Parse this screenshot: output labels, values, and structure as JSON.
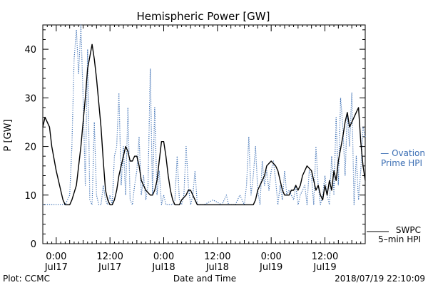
{
  "footer": {
    "plot_credit": "Plot: CCMC",
    "timestamp": "2018/07/19 22:10:09"
  },
  "legend": {
    "ovation_line1": "— Ovation",
    "ovation_line2": "Prime HPI",
    "swpc_line1": "SWPC",
    "swpc_line2": "5–min HPI"
  },
  "colors": {
    "ovation": "#3c6fb4",
    "swpc": "#000000",
    "axis": "#000000"
  },
  "chart_data": {
    "type": "line",
    "title": "Hemispheric Power [GW]",
    "xlabel": "Date and Time",
    "ylabel": "P [GW]",
    "ylim": [
      0,
      45
    ],
    "yticks": [
      0,
      10,
      20,
      30,
      40
    ],
    "xlim": [
      -3,
      69
    ],
    "x_unit": "hours",
    "xticks": [
      {
        "x": 0,
        "line1": "0:00",
        "line2": "Jul17"
      },
      {
        "x": 12,
        "line1": "12:00",
        "line2": "Jul17"
      },
      {
        "x": 24,
        "line1": "0:00",
        "line2": "Jul18"
      },
      {
        "x": 36,
        "line1": "12:00",
        "line2": "Jul18"
      },
      {
        "x": 48,
        "line1": "0:00",
        "line2": "Jul19"
      },
      {
        "x": 60,
        "line1": "12:00",
        "line2": "Jul19"
      }
    ],
    "grid": false,
    "series": [
      {
        "name": "SWPC 5-min HPI",
        "style": "solid",
        "points": [
          [
            -3,
            24
          ],
          [
            -2.5,
            26
          ],
          [
            -1.5,
            24
          ],
          [
            -1,
            20
          ],
          [
            0,
            15
          ],
          [
            1,
            11
          ],
          [
            1.5,
            9
          ],
          [
            2,
            8
          ],
          [
            3,
            8
          ],
          [
            3.5,
            9
          ],
          [
            4.5,
            12
          ],
          [
            5.5,
            20
          ],
          [
            6.5,
            30
          ],
          [
            7,
            36
          ],
          [
            8,
            41
          ],
          [
            8.5,
            38
          ],
          [
            9,
            34
          ],
          [
            10,
            24
          ],
          [
            10.5,
            17
          ],
          [
            11,
            11
          ],
          [
            11.5,
            9
          ],
          [
            12,
            8
          ],
          [
            12.5,
            8
          ],
          [
            13,
            9
          ],
          [
            13.5,
            11
          ],
          [
            14,
            14
          ],
          [
            15,
            18
          ],
          [
            15.5,
            20
          ],
          [
            16,
            19
          ],
          [
            16.5,
            17
          ],
          [
            17,
            17
          ],
          [
            17.5,
            18
          ],
          [
            18,
            18
          ],
          [
            18.5,
            16
          ],
          [
            19,
            13
          ],
          [
            20,
            11
          ],
          [
            21,
            10
          ],
          [
            21.5,
            10
          ],
          [
            22,
            11
          ],
          [
            22.5,
            13
          ],
          [
            23,
            17
          ],
          [
            23.5,
            21
          ],
          [
            24,
            21
          ],
          [
            24.5,
            18
          ],
          [
            25,
            14
          ],
          [
            25.5,
            11
          ],
          [
            26,
            9
          ],
          [
            26.5,
            8
          ],
          [
            27,
            8
          ],
          [
            27.5,
            8
          ],
          [
            28,
            9
          ],
          [
            29,
            10
          ],
          [
            29.5,
            11
          ],
          [
            30,
            11
          ],
          [
            30.5,
            10
          ],
          [
            31,
            9
          ],
          [
            31.5,
            8
          ],
          [
            44,
            8
          ],
          [
            44.5,
            9
          ],
          [
            45,
            11
          ],
          [
            46,
            13
          ],
          [
            46.5,
            14
          ],
          [
            47,
            16
          ],
          [
            48,
            17
          ],
          [
            49,
            16
          ],
          [
            49.5,
            15
          ],
          [
            50,
            13
          ],
          [
            50.5,
            11
          ],
          [
            51,
            10
          ],
          [
            52,
            10
          ],
          [
            52.5,
            11
          ],
          [
            53,
            11
          ],
          [
            53.5,
            12
          ],
          [
            54,
            11
          ],
          [
            54.5,
            12
          ],
          [
            55,
            14
          ],
          [
            56,
            16
          ],
          [
            57,
            15
          ],
          [
            57.5,
            13
          ],
          [
            58,
            11
          ],
          [
            58.5,
            12
          ],
          [
            59,
            10
          ],
          [
            59.5,
            9
          ],
          [
            60,
            12
          ],
          [
            60.5,
            10
          ],
          [
            61,
            13
          ],
          [
            61.5,
            11
          ],
          [
            62,
            15
          ],
          [
            62.5,
            13
          ],
          [
            63,
            17
          ],
          [
            64,
            22
          ],
          [
            64.5,
            25
          ],
          [
            65,
            27
          ],
          [
            65.5,
            24
          ],
          [
            66,
            25
          ],
          [
            67,
            27
          ],
          [
            67.5,
            28
          ],
          [
            68,
            21
          ],
          [
            68.5,
            16
          ],
          [
            69,
            13
          ]
        ]
      },
      {
        "name": "Ovation Prime HPI",
        "style": "dotted",
        "points": [
          [
            -3,
            8
          ],
          [
            1,
            8
          ],
          [
            2,
            8
          ],
          [
            3,
            10
          ],
          [
            3.5,
            20
          ],
          [
            4,
            38
          ],
          [
            4.5,
            44
          ],
          [
            5,
            35
          ],
          [
            5.5,
            45
          ],
          [
            6,
            30
          ],
          [
            6.5,
            12
          ],
          [
            7,
            40
          ],
          [
            7.5,
            9
          ],
          [
            8,
            8
          ],
          [
            8.5,
            25
          ],
          [
            9,
            10
          ],
          [
            9.5,
            8
          ],
          [
            10,
            8
          ],
          [
            10.5,
            12
          ],
          [
            11,
            9
          ],
          [
            11.5,
            8
          ],
          [
            12,
            10
          ],
          [
            12.5,
            8
          ],
          [
            13,
            18
          ],
          [
            13.5,
            20
          ],
          [
            14,
            31
          ],
          [
            14.5,
            12
          ],
          [
            15,
            20
          ],
          [
            15.5,
            10
          ],
          [
            16,
            28
          ],
          [
            16.5,
            9
          ],
          [
            17,
            8
          ],
          [
            17.5,
            12
          ],
          [
            18,
            15
          ],
          [
            18.5,
            22
          ],
          [
            19,
            10
          ],
          [
            19.5,
            14
          ],
          [
            20,
            9
          ],
          [
            20.5,
            12
          ],
          [
            21,
            36
          ],
          [
            21.5,
            10
          ],
          [
            22,
            28
          ],
          [
            22.5,
            10
          ],
          [
            23,
            15
          ],
          [
            23.5,
            8
          ],
          [
            24,
            10
          ],
          [
            24.5,
            8
          ],
          [
            26,
            8
          ],
          [
            26.5,
            9
          ],
          [
            27,
            18
          ],
          [
            27.5,
            9
          ],
          [
            28,
            8
          ],
          [
            28.5,
            10
          ],
          [
            29,
            20
          ],
          [
            29.5,
            12
          ],
          [
            30,
            8
          ],
          [
            30.5,
            10
          ],
          [
            31,
            15
          ],
          [
            31.5,
            8
          ],
          [
            33,
            8
          ],
          [
            35,
            9
          ],
          [
            37,
            8
          ],
          [
            38,
            10
          ],
          [
            38.5,
            8
          ],
          [
            40,
            8
          ],
          [
            41,
            10
          ],
          [
            41.5,
            9
          ],
          [
            42,
            8
          ],
          [
            42.5,
            12
          ],
          [
            43,
            22
          ],
          [
            43.5,
            10
          ],
          [
            44,
            14
          ],
          [
            44.5,
            20
          ],
          [
            45,
            11
          ],
          [
            45.5,
            8
          ],
          [
            46,
            17
          ],
          [
            46.5,
            12
          ],
          [
            47,
            15
          ],
          [
            47.5,
            11
          ],
          [
            48,
            15
          ],
          [
            48.5,
            17
          ],
          [
            49,
            13
          ],
          [
            49.5,
            8
          ],
          [
            50,
            12
          ],
          [
            50.5,
            9
          ],
          [
            51,
            15
          ],
          [
            51.5,
            10
          ],
          [
            52,
            11
          ],
          [
            52.5,
            10
          ],
          [
            53,
            9
          ],
          [
            53.5,
            12
          ],
          [
            54,
            8
          ],
          [
            54.5,
            10
          ],
          [
            55,
            11
          ],
          [
            55.5,
            12
          ],
          [
            56,
            8
          ],
          [
            56.5,
            15
          ],
          [
            57,
            14
          ],
          [
            57.5,
            8
          ],
          [
            58,
            20
          ],
          [
            58.5,
            12
          ],
          [
            59,
            8
          ],
          [
            59.5,
            10
          ],
          [
            60,
            14
          ],
          [
            60.5,
            10
          ],
          [
            61,
            8
          ],
          [
            61.5,
            18
          ],
          [
            62,
            10
          ],
          [
            62.5,
            26
          ],
          [
            63,
            12
          ],
          [
            63.5,
            30
          ],
          [
            64,
            24
          ],
          [
            64.5,
            14
          ],
          [
            65,
            27
          ],
          [
            65.5,
            20
          ],
          [
            66,
            31
          ],
          [
            66.5,
            8
          ],
          [
            67,
            18
          ],
          [
            67.5,
            9
          ],
          [
            68,
            15
          ],
          [
            68.5,
            24
          ],
          [
            69,
            22
          ]
        ]
      }
    ]
  }
}
